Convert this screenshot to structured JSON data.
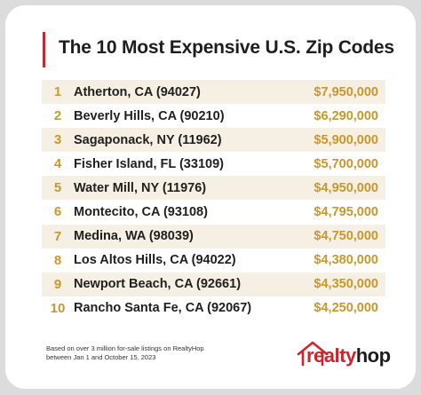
{
  "title": "The 10 Most Expensive U.S. Zip Codes",
  "rows": [
    {
      "rank": "1",
      "name": "Atherton, CA (94027)",
      "price": "$7,950,000"
    },
    {
      "rank": "2",
      "name": "Beverly Hills, CA (90210)",
      "price": "$6,290,000"
    },
    {
      "rank": "3",
      "name": "Sagaponack, NY (11962)",
      "price": "$5,900,000"
    },
    {
      "rank": "4",
      "name": "Fisher Island, FL (33109)",
      "price": "$5,700,000"
    },
    {
      "rank": "5",
      "name": "Water Mill, NY (11976)",
      "price": "$4,950,000"
    },
    {
      "rank": "6",
      "name": "Montecito, CA (93108)",
      "price": "$4,795,000"
    },
    {
      "rank": "7",
      "name": "Medina, WA (98039)",
      "price": "$4,750,000"
    },
    {
      "rank": "8",
      "name": "Los Altos Hills, CA (94022)",
      "price": "$4,380,000"
    },
    {
      "rank": "9",
      "name": "Newport Beach, CA (92661)",
      "price": "$4,350,000"
    },
    {
      "rank": "10",
      "name": "Rancho Santa Fe, CA (92067)",
      "price": "$4,250,000"
    }
  ],
  "footnote": {
    "line1": "Based on over 3 million for-sale listings on RealtyHop",
    "line2": "between Jan 1 and October 15, 2023"
  },
  "brand": {
    "icon": "house-outline-icon",
    "part1": "realty",
    "part2": "hop"
  },
  "colors": {
    "accent": "#c8272e",
    "gold": "#c9972e",
    "row_shade": "#f6efe3"
  }
}
